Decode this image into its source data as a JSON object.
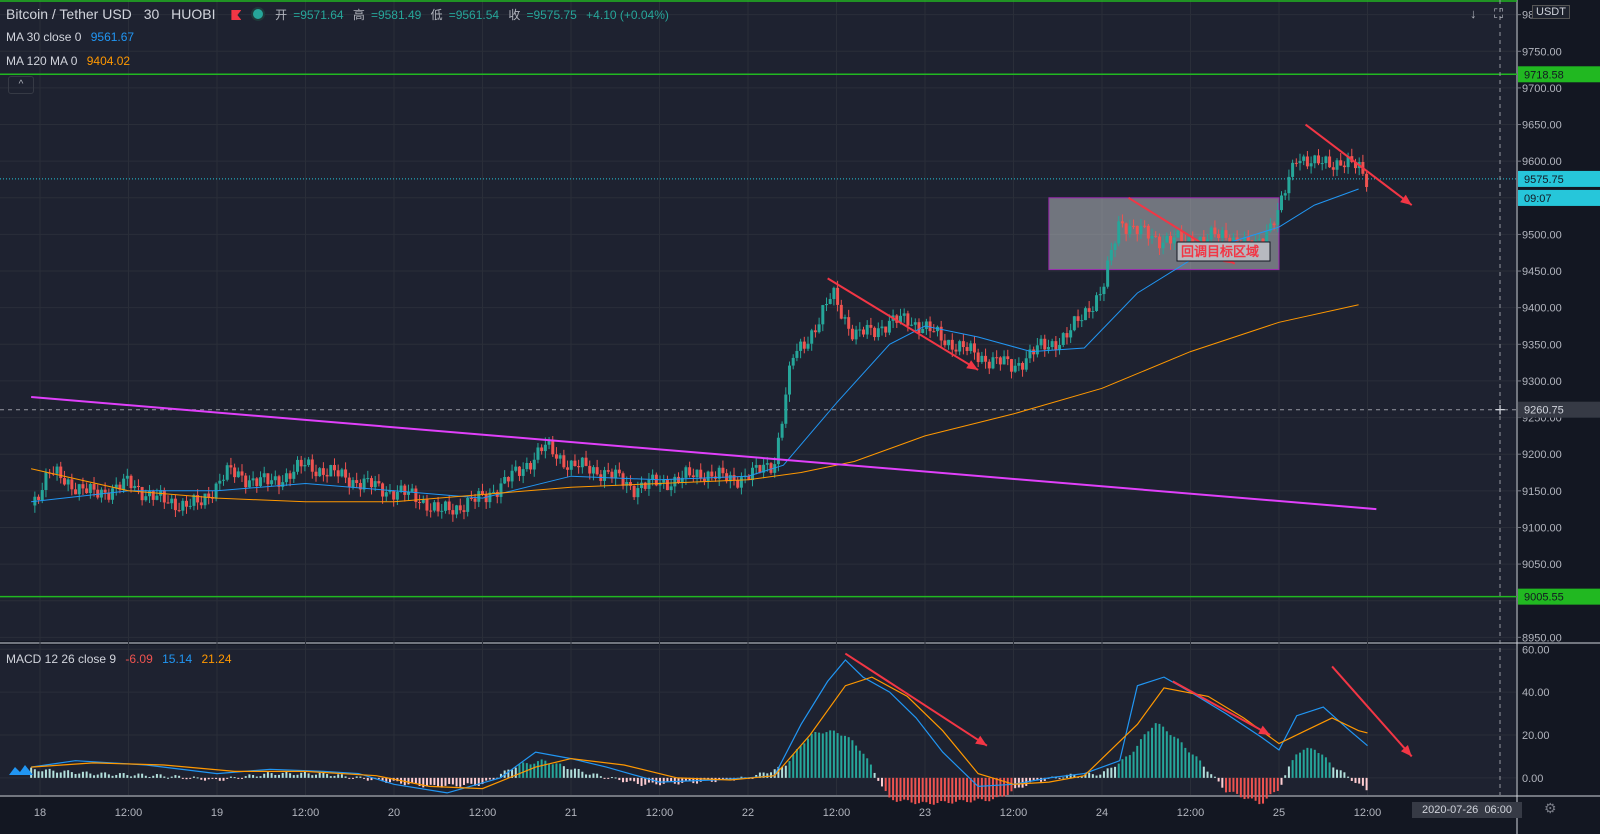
{
  "header": {
    "symbol": "Bitcoin / Tether USD",
    "interval": "30",
    "exchange": "HUOBI",
    "open_label": "开",
    "open": "=9571.64",
    "high_label": "高",
    "high": "=9581.49",
    "low_label": "低",
    "low": "=9561.54",
    "close_label": "收",
    "close": "=9575.75",
    "change": "+4.10 (+0.04%)"
  },
  "indicators": {
    "ma30_label": "MA 30 close 0",
    "ma30_value": "9561.67",
    "ma120_label": "MA 120 MA 0",
    "ma120_value": "9404.02",
    "macd_label": "MACD 12 26 close 9",
    "macd_hist": "-6.09",
    "macd_line": "15.14",
    "macd_signal": "21.24"
  },
  "currency_badge": "USDT",
  "annotation_text": "回调目标区域",
  "crosshair_date": "2020-07-26",
  "crosshair_time": "06:00",
  "icons": {
    "arrow_down": "↓",
    "fullscreen": "⛶",
    "collapse": "^",
    "settings": "⚙"
  },
  "colors": {
    "up": "#26a69a",
    "down": "#ef5350",
    "ma30": "#2196f3",
    "ma120": "#ff9800",
    "trendline": "#e040fb",
    "hline": "#21b821",
    "arrow": "#f23645",
    "zone": "#b7b9c0"
  },
  "chart_data": {
    "type": "candlestick",
    "symbol": "Bitcoin / Tether USD",
    "timeframe": "30",
    "price_axis": {
      "ticks": [
        "9800.00",
        "9750.00",
        "9700.00",
        "9650.00",
        "9600.00",
        "9550.00",
        "9500.00",
        "9450.00",
        "9400.00",
        "9350.00",
        "9300.00",
        "9250.00",
        "9200.00",
        "9150.00",
        "9100.00",
        "9050.00",
        "9000.00",
        "8950.00"
      ],
      "range": [
        8945,
        9820
      ]
    },
    "time_axis": {
      "ticks": [
        "18",
        "12:00",
        "19",
        "12:00",
        "20",
        "12:00",
        "21",
        "12:00",
        "22",
        "12:00",
        "23",
        "12:00",
        "24",
        "12:00",
        "25",
        "12:00"
      ]
    },
    "price_labels": {
      "last": "9575.75",
      "countdown": "09:07",
      "crosshair": "9260.75",
      "hline_top": "9718.58",
      "hline_bottom": "9005.55"
    },
    "horizontal_levels": [
      9718.58,
      9005.55
    ],
    "last_price": 9575.75,
    "crosshair_price": 9260.75,
    "target_zone": {
      "price_top": 9550,
      "price_bottom": 9452,
      "time_start": 23.7,
      "time_end": 25.0
    },
    "price_path": [
      [
        17.95,
        9130
      ],
      [
        18.05,
        9175
      ],
      [
        18.3,
        9145
      ],
      [
        18.5,
        9160
      ],
      [
        18.7,
        9135
      ],
      [
        18.9,
        9130
      ],
      [
        19.05,
        9175
      ],
      [
        19.3,
        9160
      ],
      [
        19.5,
        9185
      ],
      [
        19.7,
        9170
      ],
      [
        19.9,
        9155
      ],
      [
        20.15,
        9140
      ],
      [
        20.25,
        9120
      ],
      [
        20.5,
        9140
      ],
      [
        20.7,
        9175
      ],
      [
        20.85,
        9210
      ],
      [
        21.0,
        9185
      ],
      [
        21.2,
        9175
      ],
      [
        21.35,
        9155
      ],
      [
        21.6,
        9165
      ],
      [
        21.75,
        9175
      ],
      [
        21.9,
        9165
      ],
      [
        22.05,
        9175
      ],
      [
        22.15,
        9190
      ],
      [
        22.25,
        9330
      ],
      [
        22.4,
        9380
      ],
      [
        22.48,
        9420
      ],
      [
        22.6,
        9360
      ],
      [
        22.75,
        9375
      ],
      [
        22.9,
        9385
      ],
      [
        23.05,
        9365
      ],
      [
        23.2,
        9345
      ],
      [
        23.35,
        9330
      ],
      [
        23.5,
        9320
      ],
      [
        23.65,
        9345
      ],
      [
        23.8,
        9360
      ],
      [
        23.92,
        9400
      ],
      [
        24.0,
        9420
      ],
      [
        24.1,
        9520
      ],
      [
        24.2,
        9505
      ],
      [
        24.3,
        9495
      ],
      [
        24.5,
        9490
      ],
      [
        24.7,
        9500
      ],
      [
        24.85,
        9480
      ],
      [
        25.0,
        9530
      ],
      [
        25.1,
        9610
      ],
      [
        25.2,
        9595
      ],
      [
        25.35,
        9600
      ],
      [
        25.45,
        9590
      ],
      [
        25.5,
        9575
      ]
    ],
    "series": [
      {
        "name": "MA 30 close 0",
        "points": [
          [
            17.95,
            9135
          ],
          [
            18.5,
            9150
          ],
          [
            19.0,
            9150
          ],
          [
            19.5,
            9160
          ],
          [
            20.0,
            9150
          ],
          [
            20.5,
            9140
          ],
          [
            21.0,
            9170
          ],
          [
            21.5,
            9165
          ],
          [
            22.0,
            9170
          ],
          [
            22.2,
            9185
          ],
          [
            22.5,
            9270
          ],
          [
            22.8,
            9350
          ],
          [
            23.0,
            9375
          ],
          [
            23.3,
            9360
          ],
          [
            23.6,
            9340
          ],
          [
            23.9,
            9345
          ],
          [
            24.2,
            9420
          ],
          [
            24.6,
            9480
          ],
          [
            25.0,
            9510
          ],
          [
            25.2,
            9540
          ],
          [
            25.45,
            9562
          ]
        ]
      },
      {
        "name": "MA 120 MA 0",
        "points": [
          [
            17.95,
            9180
          ],
          [
            18.5,
            9150
          ],
          [
            19.0,
            9140
          ],
          [
            19.5,
            9135
          ],
          [
            20.0,
            9135
          ],
          [
            20.5,
            9145
          ],
          [
            21.0,
            9155
          ],
          [
            21.5,
            9160
          ],
          [
            22.0,
            9165
          ],
          [
            22.3,
            9175
          ],
          [
            22.6,
            9190
          ],
          [
            23.0,
            9225
          ],
          [
            23.5,
            9255
          ],
          [
            24.0,
            9290
          ],
          [
            24.5,
            9340
          ],
          [
            25.0,
            9380
          ],
          [
            25.45,
            9404
          ]
        ]
      }
    ],
    "trendline": {
      "start": [
        17.95,
        9278
      ],
      "end": [
        25.55,
        9125
      ]
    },
    "arrows": [
      {
        "from": [
          22.45,
          9440
        ],
        "to": [
          23.3,
          9315
        ]
      },
      {
        "from": [
          24.15,
          9550
        ],
        "to": [
          24.75,
          9460
        ]
      },
      {
        "from": [
          25.15,
          9650
        ],
        "to": [
          25.75,
          9540
        ]
      }
    ],
    "macd": {
      "axis_ticks": [
        "60.00",
        "40.00",
        "20.00",
        "0.00"
      ],
      "range": [
        -8,
        62
      ],
      "macd_line": [
        [
          17.95,
          5
        ],
        [
          18.2,
          8
        ],
        [
          18.6,
          6
        ],
        [
          19.0,
          2
        ],
        [
          19.3,
          4
        ],
        [
          19.6,
          3
        ],
        [
          19.8,
          2
        ],
        [
          20.0,
          -3
        ],
        [
          20.3,
          -7
        ],
        [
          20.6,
          0
        ],
        [
          20.8,
          12
        ],
        [
          21.0,
          9
        ],
        [
          21.2,
          5
        ],
        [
          21.5,
          -2
        ],
        [
          21.8,
          -1
        ],
        [
          22.0,
          0
        ],
        [
          22.15,
          1
        ],
        [
          22.3,
          25
        ],
        [
          22.45,
          45
        ],
        [
          22.55,
          55
        ],
        [
          22.65,
          47
        ],
        [
          22.8,
          40
        ],
        [
          22.95,
          28
        ],
        [
          23.1,
          12
        ],
        [
          23.3,
          -4
        ],
        [
          23.5,
          -3
        ],
        [
          23.7,
          0
        ],
        [
          23.9,
          2
        ],
        [
          24.1,
          8
        ],
        [
          24.2,
          43
        ],
        [
          24.35,
          47
        ],
        [
          24.5,
          40
        ],
        [
          24.7,
          30
        ],
        [
          24.9,
          19
        ],
        [
          25.0,
          13
        ],
        [
          25.1,
          29
        ],
        [
          25.25,
          33
        ],
        [
          25.4,
          22
        ],
        [
          25.5,
          15
        ]
      ],
      "signal_line": [
        [
          17.95,
          5
        ],
        [
          18.3,
          7
        ],
        [
          18.7,
          6
        ],
        [
          19.1,
          3
        ],
        [
          19.5,
          3
        ],
        [
          19.9,
          1
        ],
        [
          20.2,
          -4
        ],
        [
          20.5,
          -5
        ],
        [
          20.8,
          5
        ],
        [
          21.0,
          9
        ],
        [
          21.3,
          6
        ],
        [
          21.6,
          0
        ],
        [
          21.9,
          -1
        ],
        [
          22.15,
          1
        ],
        [
          22.35,
          20
        ],
        [
          22.55,
          43
        ],
        [
          22.7,
          47
        ],
        [
          22.9,
          38
        ],
        [
          23.1,
          22
        ],
        [
          23.3,
          2
        ],
        [
          23.5,
          -3
        ],
        [
          23.7,
          -2
        ],
        [
          23.9,
          1
        ],
        [
          24.2,
          25
        ],
        [
          24.35,
          42
        ],
        [
          24.6,
          38
        ],
        [
          24.8,
          28
        ],
        [
          25.0,
          16
        ],
        [
          25.15,
          22
        ],
        [
          25.3,
          28
        ],
        [
          25.45,
          22
        ],
        [
          25.5,
          21
        ]
      ],
      "histogram": [
        [
          17.95,
          4
        ],
        [
          18.3,
          2
        ],
        [
          18.7,
          1
        ],
        [
          19.0,
          -1
        ],
        [
          19.3,
          2
        ],
        [
          19.6,
          2
        ],
        [
          19.9,
          -1
        ],
        [
          20.2,
          -4
        ],
        [
          20.5,
          -3
        ],
        [
          20.7,
          6
        ],
        [
          20.85,
          8
        ],
        [
          21.1,
          2
        ],
        [
          21.4,
          -3
        ],
        [
          21.7,
          -2
        ],
        [
          22.0,
          0
        ],
        [
          22.2,
          5
        ],
        [
          22.35,
          20
        ],
        [
          22.45,
          22
        ],
        [
          22.55,
          20
        ],
        [
          22.65,
          12
        ],
        [
          22.8,
          -10
        ],
        [
          23.0,
          -12
        ],
        [
          23.2,
          -11
        ],
        [
          23.4,
          -10
        ],
        [
          23.6,
          -2
        ],
        [
          23.8,
          1
        ],
        [
          24.0,
          2
        ],
        [
          24.15,
          10
        ],
        [
          24.3,
          26
        ],
        [
          24.4,
          20
        ],
        [
          24.55,
          8
        ],
        [
          24.7,
          -6
        ],
        [
          24.9,
          -12
        ],
        [
          25.0,
          -5
        ],
        [
          25.1,
          12
        ],
        [
          25.2,
          14
        ],
        [
          25.3,
          6
        ],
        [
          25.5,
          -6
        ]
      ]
    },
    "macd_arrows": [
      {
        "from": [
          22.55,
          58
        ],
        "to": [
          23.35,
          15
        ]
      },
      {
        "from": [
          24.4,
          45
        ],
        "to": [
          24.95,
          20
        ]
      },
      {
        "from": [
          25.3,
          52
        ],
        "to": [
          25.75,
          10
        ]
      }
    ]
  }
}
